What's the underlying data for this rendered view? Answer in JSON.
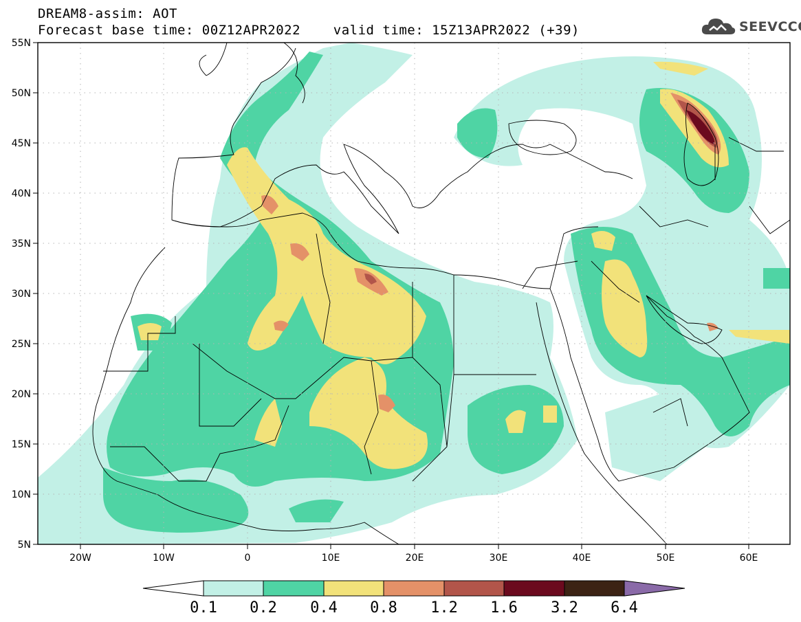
{
  "header": {
    "model_line": "DREAM8-assim: AOT",
    "time_line": "Forecast base time: 00Z12APR2022    valid time: 15Z13APR2022 (+39)"
  },
  "logo": {
    "text": "SEEVCCC",
    "icon": "cloud-icon"
  },
  "map": {
    "lat_labels": [
      "55N",
      "50N",
      "45N",
      "40N",
      "35N",
      "30N",
      "25N",
      "20N",
      "15N",
      "10N",
      "5N"
    ],
    "lon_labels": [
      "20W",
      "10W",
      "0",
      "10E",
      "20E",
      "30E",
      "40E",
      "50E",
      "60E"
    ],
    "lon_range": [
      -25,
      65
    ],
    "lat_range": [
      5,
      55
    ],
    "gridlines": "dotted"
  },
  "colorbar": {
    "levels": [
      "0.1",
      "0.2",
      "0.4",
      "0.8",
      "1.2",
      "1.6",
      "3.2",
      "6.4"
    ],
    "colors": [
      "#c2f0e6",
      "#4fd4a4",
      "#f2e27a",
      "#e49168",
      "#b2554a",
      "#6b0a1e",
      "#3c2314",
      "#8a6aa8"
    ]
  }
}
